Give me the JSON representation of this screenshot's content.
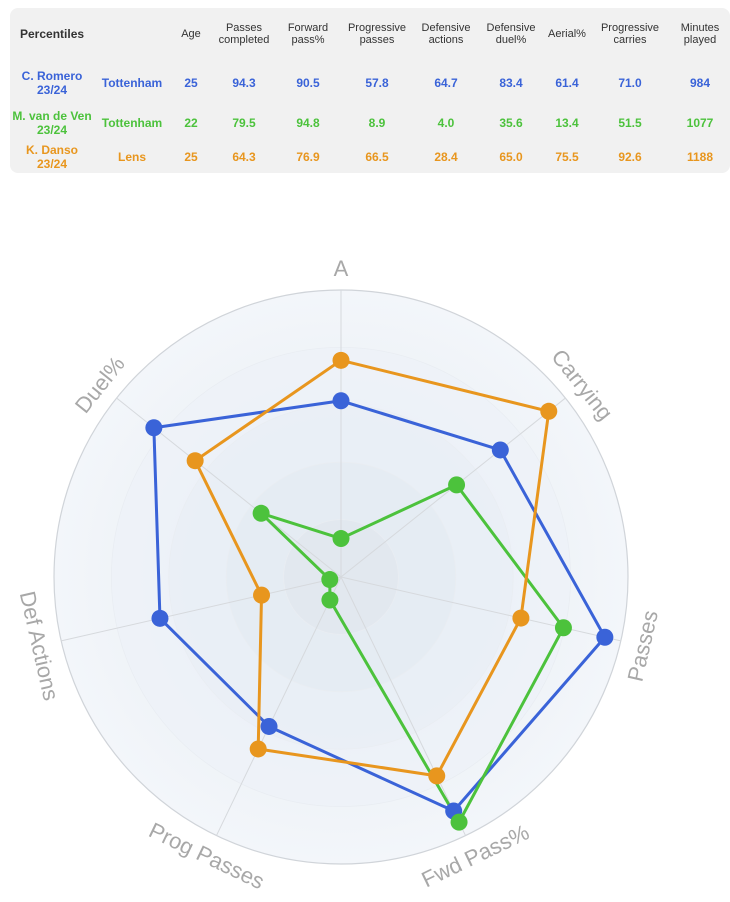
{
  "table": {
    "headers": [
      "Percentiles",
      "",
      "Age",
      "Passes completed",
      "Forward pass%",
      "Progressive passes",
      "Defensive actions",
      "Defensive duel%",
      "Aerial%",
      "Progressive carries",
      "Minutes played"
    ],
    "rows": [
      {
        "player": "C. Romero 23/24",
        "team": "Tottenham",
        "age": "25",
        "values": [
          "94.3",
          "90.5",
          "57.8",
          "64.7",
          "83.4",
          "61.4",
          "71.0",
          "984"
        ],
        "color": "#3a63d8"
      },
      {
        "player": "M. van de Ven 23/24",
        "team": "Tottenham",
        "age": "22",
        "values": [
          "79.5",
          "94.8",
          "8.9",
          "4.0",
          "35.6",
          "13.4",
          "51.5",
          "1077"
        ],
        "color": "#4cc23c"
      },
      {
        "player": "K. Danso 23/24",
        "team": "Lens",
        "age": "25",
        "values": [
          "64.3",
          "76.9",
          "66.5",
          "28.4",
          "65.0",
          "75.5",
          "92.6",
          "1188"
        ],
        "color": "#e8961e"
      }
    ]
  },
  "chart_data": {
    "type": "radar",
    "axes": [
      "A",
      "Carrying",
      "Passes",
      "Fwd Pass%",
      "Prog Passes",
      "Def Actions",
      "Duel%"
    ],
    "range": [
      0,
      100
    ],
    "series": [
      {
        "name": "C. Romero 23/24",
        "color": "#3a63d8",
        "values": [
          61.4,
          71.0,
          94.3,
          90.5,
          57.8,
          64.7,
          83.4
        ]
      },
      {
        "name": "M. van de Ven 23/24",
        "color": "#4cc23c",
        "values": [
          13.4,
          51.5,
          79.5,
          94.8,
          8.9,
          4.0,
          35.6
        ]
      },
      {
        "name": "K. Danso 23/24",
        "color": "#e8961e",
        "values": [
          75.5,
          92.6,
          64.3,
          76.9,
          66.5,
          28.4,
          65.0
        ]
      }
    ]
  }
}
